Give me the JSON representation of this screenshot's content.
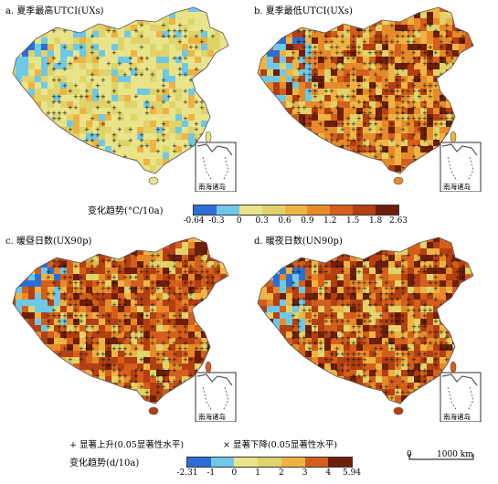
{
  "panels": [
    {
      "id": "a",
      "title": "a. 夏季最高UTCI(UXs)",
      "tone": "mild",
      "inset_label": "南海诸岛"
    },
    {
      "id": "b",
      "title": "b. 夏季最低UTCI(UXs)",
      "tone": "warm",
      "inset_label": "南海诸岛"
    },
    {
      "id": "c",
      "title": "c. 暖昼日数(UX90p)",
      "tone": "hot",
      "inset_label": "南海诸岛"
    },
    {
      "id": "d",
      "title": "d. 暖夜日数(UN90p)",
      "tone": "hot",
      "inset_label": "南海诸岛"
    }
  ],
  "legend_top": {
    "title": "变化趋势(°C/10a)",
    "ticks": [
      "-0.64",
      "-0.3",
      "0",
      "0.3",
      "0.6",
      "0.9",
      "1.2",
      "1.5",
      "1.8",
      "2.63"
    ],
    "colors": [
      "#2b6fd6",
      "#6ec9e8",
      "#e9e48a",
      "#dfd36a",
      "#efb343",
      "#e78a2a",
      "#d45f1c",
      "#b43f12",
      "#6e1f0a"
    ]
  },
  "legend_bottom": {
    "title": "变化趋势(d/10a)",
    "ticks": [
      "-2.31",
      "-1",
      "0",
      "1",
      "2",
      "3",
      "4",
      "5.94"
    ],
    "colors": [
      "#2b6fd6",
      "#6ec9e8",
      "#e9e48a",
      "#dfd36a",
      "#efb343",
      "#d45f1c",
      "#6e1f0a"
    ]
  },
  "notes": {
    "sig_up": "+ 显著上升(0.05显著性水平)",
    "sig_down": "× 显著下降(0.05显著性水平)"
  },
  "scale_bar": {
    "start": "0",
    "end": "1000 km"
  }
}
